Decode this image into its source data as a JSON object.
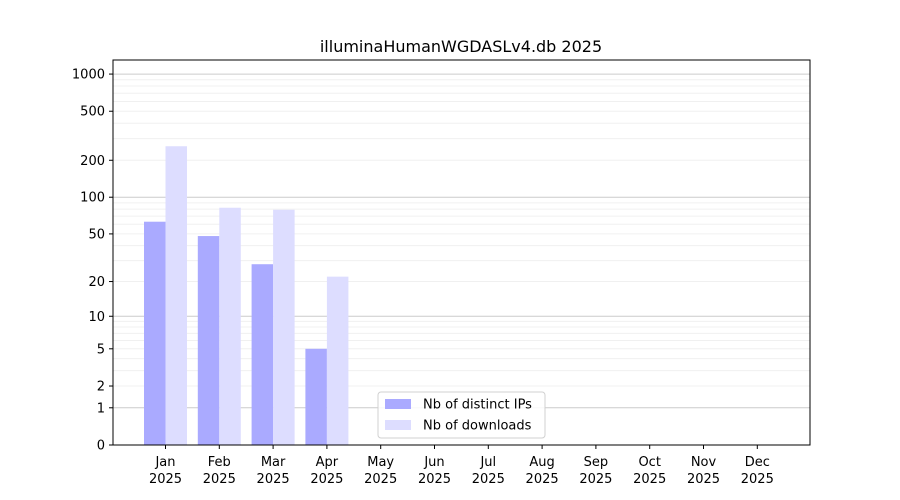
{
  "chart_data": {
    "type": "bar",
    "title": "illuminaHumanWGDASLv4.db 2025",
    "xlabel": "",
    "ylabel": "",
    "categories": [
      {
        "month": "Jan",
        "year": "2025"
      },
      {
        "month": "Feb",
        "year": "2025"
      },
      {
        "month": "Mar",
        "year": "2025"
      },
      {
        "month": "Apr",
        "year": "2025"
      },
      {
        "month": "May",
        "year": "2025"
      },
      {
        "month": "Jun",
        "year": "2025"
      },
      {
        "month": "Jul",
        "year": "2025"
      },
      {
        "month": "Aug",
        "year": "2025"
      },
      {
        "month": "Sep",
        "year": "2025"
      },
      {
        "month": "Oct",
        "year": "2025"
      },
      {
        "month": "Nov",
        "year": "2025"
      },
      {
        "month": "Dec",
        "year": "2025"
      }
    ],
    "series": [
      {
        "name": "Nb of distinct IPs",
        "color": "#aaaaff",
        "values": [
          63,
          48,
          28,
          5,
          0,
          0,
          0,
          0,
          0,
          0,
          0,
          0
        ]
      },
      {
        "name": "Nb of downloads",
        "color": "#ddddff",
        "values": [
          260,
          82,
          79,
          22,
          0,
          0,
          0,
          0,
          0,
          0,
          0,
          0
        ]
      }
    ],
    "y_scale": "log(1+y)",
    "ylim": [
      0,
      1300
    ],
    "y_ticks": [
      "0",
      "1",
      "2",
      "5",
      "10",
      "20",
      "50",
      "100",
      "200",
      "500",
      "1000"
    ],
    "grid": "horizontal",
    "legend_position": "bottom-center"
  }
}
